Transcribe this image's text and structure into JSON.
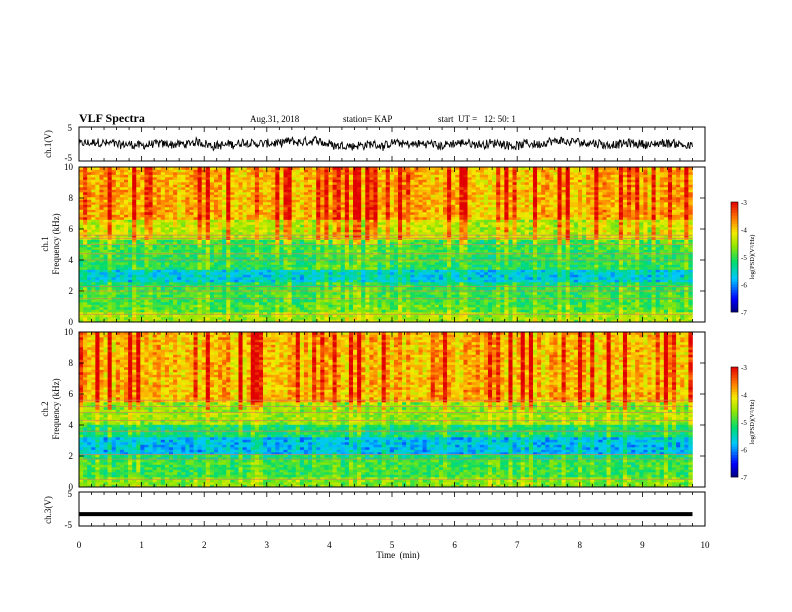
{
  "header": {
    "title": "VLF Spectra",
    "date": "Aug.31, 2018",
    "station": "station= KAP",
    "start": "start  UT =   12: 50: 1"
  },
  "chart_data": [
    {
      "type": "line",
      "ylabel": "ch.1(V)",
      "yticks": [
        "5",
        "-5"
      ],
      "ylim": [
        -5,
        5
      ],
      "xlim": [
        0,
        10
      ],
      "series": [
        {
          "x_range": [
            0,
            9.8
          ],
          "mean": 0,
          "amplitude": 1.8
        }
      ]
    },
    {
      "type": "heatmap",
      "ylabel": "ch.1",
      "ylabel2": "Frequency  (kHz)",
      "yticks": [
        "0",
        "2",
        "4",
        "6",
        "8",
        "10"
      ],
      "ylim": [
        0,
        10
      ],
      "xlim": [
        0,
        9.8
      ],
      "colorbar": {
        "label": "log(PSD)(V²/Hz)",
        "ticks": [
          "-3",
          "-4",
          "-5",
          "-6",
          "-7"
        ],
        "range": [
          -7,
          -3
        ]
      },
      "bands": [
        {
          "f": [
            0,
            0.6
          ],
          "psd": -4.6
        },
        {
          "f": [
            0.6,
            1.2
          ],
          "psd": -4.9
        },
        {
          "f": [
            1.2,
            2.2
          ],
          "psd": -5.0
        },
        {
          "f": [
            2.2,
            2.6
          ],
          "psd": -5.2
        },
        {
          "f": [
            2.6,
            3.4
          ],
          "psd": -5.7
        },
        {
          "f": [
            3.4,
            4.3
          ],
          "psd": -5.1
        },
        {
          "f": [
            4.3,
            5.4
          ],
          "psd": -5.0
        },
        {
          "f": [
            5.4,
            6.6
          ],
          "psd": -4.4
        },
        {
          "f": [
            6.6,
            10
          ],
          "psd": -3.9
        }
      ],
      "lines_khz": [
        0.5,
        1.5,
        2.0,
        2.3,
        4.0,
        4.4,
        5.0,
        5.4,
        5.6
      ]
    },
    {
      "type": "heatmap",
      "ylabel": "ch.2",
      "ylabel2": "Frequency  (kHz)",
      "yticks": [
        "0",
        "2",
        "4",
        "6",
        "8",
        "10"
      ],
      "ylim": [
        0,
        10
      ],
      "xlim": [
        0,
        9.8
      ],
      "colorbar": {
        "label": "log(PSD)(V²/Hz)",
        "ticks": [
          "-3",
          "-4",
          "-5",
          "-6",
          "-7"
        ],
        "range": [
          -7,
          -3
        ]
      },
      "bands": [
        {
          "f": [
            0,
            0.6
          ],
          "psd": -4.7
        },
        {
          "f": [
            0.6,
            1.8
          ],
          "psd": -5.0
        },
        {
          "f": [
            1.8,
            2.1
          ],
          "psd": -5.2
        },
        {
          "f": [
            2.1,
            3.3
          ],
          "psd": -5.8
        },
        {
          "f": [
            3.3,
            4.0
          ],
          "psd": -5.2
        },
        {
          "f": [
            4.0,
            5.5
          ],
          "psd": -4.6
        },
        {
          "f": [
            5.5,
            10
          ],
          "psd": -3.9
        }
      ],
      "lines_khz": [
        0.5,
        1.8,
        2.1,
        3.6,
        4.3,
        4.8,
        5.2,
        5.6
      ]
    },
    {
      "type": "line",
      "ylabel": "ch.3(V)",
      "yticks": [
        "5",
        "-5"
      ],
      "ylim": [
        -5,
        5
      ],
      "xlim": [
        0,
        10
      ],
      "xlabel": "Time  (min)",
      "xticks": [
        "0",
        "1",
        "2",
        "3",
        "4",
        "5",
        "6",
        "7",
        "8",
        "9",
        "10"
      ],
      "series": [
        {
          "x_range": [
            0,
            9.8
          ],
          "value": -1.5
        }
      ]
    }
  ]
}
